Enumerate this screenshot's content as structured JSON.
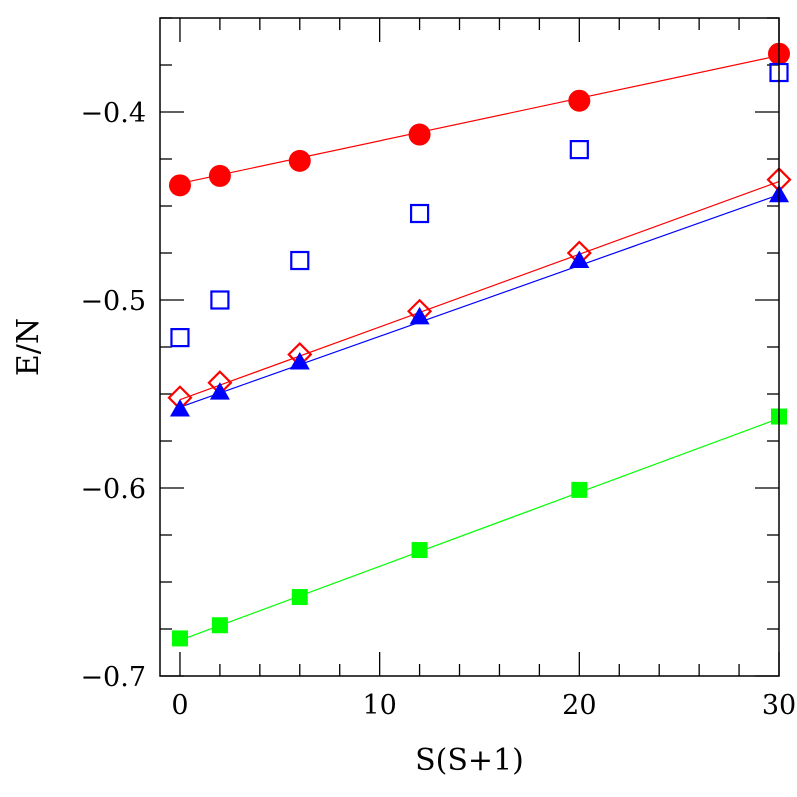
{
  "chart_data": {
    "type": "scatter",
    "title": "",
    "xlabel": "S(S+1)",
    "ylabel": "E/N",
    "xlim": [
      -1,
      30
    ],
    "ylim": [
      -0.7,
      -0.35
    ],
    "x_ticks": [
      0,
      10,
      20,
      30
    ],
    "x_tick_labels": [
      "0",
      "10",
      "20",
      "30"
    ],
    "y_ticks": [
      -0.7,
      -0.6,
      -0.5,
      -0.4
    ],
    "y_tick_labels": [
      "−0.7",
      "−0.6",
      "−0.5",
      "−0.4"
    ],
    "x_minor_step": 2,
    "y_minor_step": 0.025,
    "grid": false,
    "legend": "none",
    "series": [
      {
        "marker": "filled-circle",
        "color": "#ff0000",
        "line": true,
        "line_color": "#ff0000",
        "points": [
          [
            0,
            -0.439
          ],
          [
            2,
            -0.434
          ],
          [
            6,
            -0.426
          ],
          [
            12,
            -0.412
          ],
          [
            20,
            -0.394
          ],
          [
            30,
            -0.369
          ]
        ],
        "fit": [
          [
            0,
            -0.438
          ],
          [
            30,
            -0.37
          ]
        ]
      },
      {
        "marker": "open-square",
        "color": "#0000ff",
        "line": false,
        "points": [
          [
            0,
            -0.52
          ],
          [
            2,
            -0.5
          ],
          [
            6,
            -0.479
          ],
          [
            12,
            -0.454
          ],
          [
            20,
            -0.42
          ],
          [
            30,
            -0.379
          ]
        ]
      },
      {
        "marker": "open-diamond",
        "color": "#ff0000",
        "line": true,
        "line_color": "#ff0000",
        "points": [
          [
            0,
            -0.552
          ],
          [
            2,
            -0.544
          ],
          [
            6,
            -0.529
          ],
          [
            12,
            -0.506
          ],
          [
            20,
            -0.475
          ],
          [
            30,
            -0.436
          ]
        ],
        "fit": [
          [
            0,
            -0.553
          ],
          [
            30,
            -0.437
          ]
        ]
      },
      {
        "marker": "filled-triangle",
        "color": "#0000ff",
        "line": true,
        "line_color": "#0000ff",
        "points": [
          [
            0,
            -0.558
          ],
          [
            2,
            -0.549
          ],
          [
            6,
            -0.533
          ],
          [
            12,
            -0.509
          ],
          [
            20,
            -0.479
          ],
          [
            30,
            -0.444
          ]
        ],
        "fit": [
          [
            0,
            -0.557
          ],
          [
            30,
            -0.444
          ]
        ]
      },
      {
        "marker": "filled-square",
        "color": "#00ff00",
        "line": true,
        "line_color": "#00ff00",
        "points": [
          [
            0,
            -0.68
          ],
          [
            2,
            -0.673
          ],
          [
            6,
            -0.658
          ],
          [
            12,
            -0.633
          ],
          [
            20,
            -0.601
          ],
          [
            30,
            -0.562
          ]
        ],
        "fit": [
          [
            0,
            -0.681
          ],
          [
            30,
            -0.563
          ]
        ]
      }
    ]
  }
}
